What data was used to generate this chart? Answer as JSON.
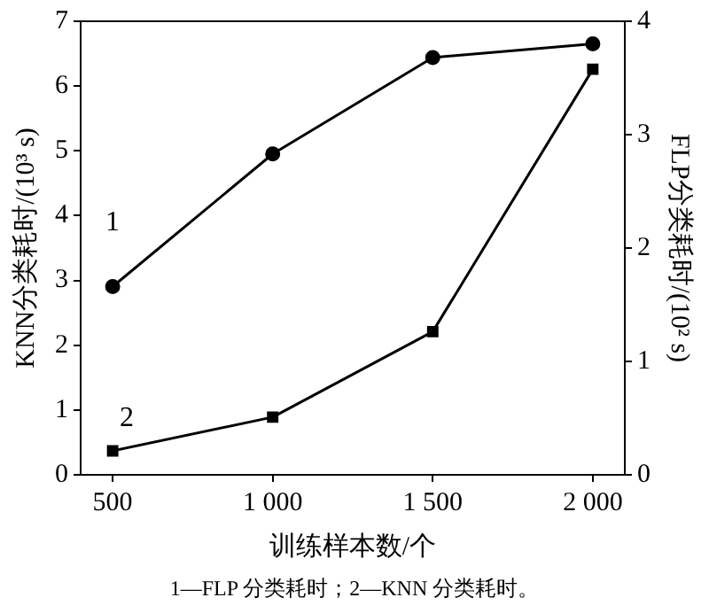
{
  "chart_data": {
    "type": "line",
    "x": [
      500,
      1000,
      1500,
      2000
    ],
    "series": [
      {
        "name": "1",
        "color": "#000000",
        "marker": "circle",
        "axis": "y2",
        "values": [
          1.66,
          2.83,
          3.68,
          3.8
        ]
      },
      {
        "name": "2",
        "color": "#000000",
        "marker": "square",
        "values": [
          0.37,
          0.89,
          2.21,
          6.26
        ]
      }
    ],
    "xlabel": "训练样本数/个",
    "ylabel": "KNN分类耗时/(10³ s)",
    "y2label": "FLP分类耗时/(10² s)",
    "xlim": [
      400,
      2100
    ],
    "xticks": [
      500,
      {
        "value": 1000,
        "label": "1 000"
      },
      {
        "value": 1500,
        "label": "1 500"
      },
      {
        "value": 2000,
        "label": "2 000"
      }
    ],
    "ylim": [
      0,
      7
    ],
    "yticks": [
      0,
      1,
      2,
      3,
      4,
      5,
      6,
      7
    ],
    "y2lim": [
      0,
      4
    ],
    "y2ticks": [
      0,
      1,
      2,
      3,
      4
    ],
    "grid": false,
    "legend": false,
    "line_style": "solid",
    "annotations": [
      "1—FLP 分类耗时；2—KNN 分类耗时。"
    ]
  }
}
